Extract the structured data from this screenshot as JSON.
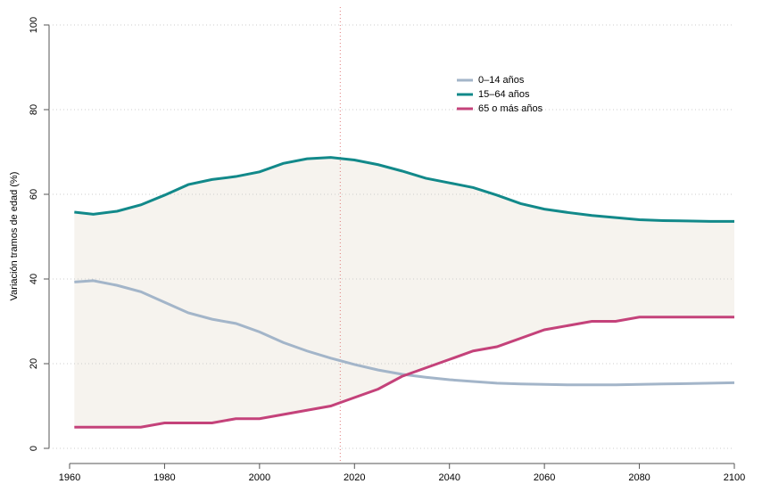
{
  "chart_data": {
    "type": "line",
    "ylabel": "Variación tramos de edad (%)",
    "x": [
      1961,
      1965,
      1970,
      1975,
      1980,
      1985,
      1990,
      1995,
      2000,
      2005,
      2010,
      2015,
      2020,
      2025,
      2030,
      2035,
      2040,
      2045,
      2050,
      2055,
      2060,
      2065,
      2070,
      2075,
      2080,
      2085,
      2090,
      2095,
      2100
    ],
    "series": [
      {
        "name": "0–14 años",
        "color": "#a3b5c9",
        "values": [
          39.3,
          39.6,
          38.5,
          37,
          34.5,
          32,
          30.5,
          29.5,
          27.5,
          25,
          23,
          21.3,
          19.8,
          18.5,
          17.5,
          16.8,
          16.2,
          15.8,
          15.4,
          15.2,
          15.1,
          15,
          15,
          15,
          15.1,
          15.2,
          15.3,
          15.4,
          15.5
        ]
      },
      {
        "name": "15–64 años",
        "color": "#12898a",
        "values": [
          55.8,
          55.3,
          56,
          57.5,
          59.8,
          62.3,
          63.5,
          64.2,
          65.3,
          67.3,
          68.4,
          68.7,
          68.1,
          67,
          65.5,
          63.8,
          62.7,
          61.6,
          59.8,
          57.8,
          56.5,
          55.7,
          55,
          54.5,
          54,
          53.8,
          53.7,
          53.6,
          53.6
        ]
      },
      {
        "name": "65 o más años",
        "color": "#c4427a",
        "values": [
          5,
          5,
          5,
          5,
          6,
          6,
          6,
          7,
          7,
          8,
          9,
          10,
          12,
          14,
          17,
          19,
          21,
          23,
          24,
          26,
          28,
          29,
          30,
          30,
          31,
          31,
          31,
          31,
          31
        ]
      }
    ],
    "shade_between": [
      1,
      2
    ],
    "shade_color": "#f6f3ee",
    "reference_line": {
      "x": 2017,
      "color": "#e07a7a"
    },
    "xlim": [
      1960,
      2100
    ],
    "xticks": [
      1960,
      1980,
      2000,
      2020,
      2040,
      2060,
      2080,
      2100
    ],
    "ylim": [
      0,
      100
    ],
    "yticks": [
      0,
      20,
      40,
      60,
      80,
      100
    ],
    "grid": true,
    "legend": "upper right"
  }
}
